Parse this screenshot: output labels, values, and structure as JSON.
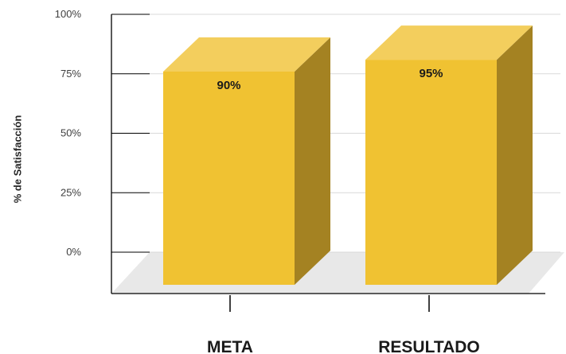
{
  "chart_data": {
    "type": "bar",
    "style": "3d-column",
    "categories": [
      "META",
      "RESULTADO"
    ],
    "values": [
      90,
      95
    ],
    "data_labels": [
      "90%",
      "95%"
    ],
    "ylabel": "% de Satisfacción",
    "ylim": [
      0,
      100
    ],
    "yticks": [
      0,
      25,
      50,
      75,
      100
    ],
    "ytick_labels": [
      "0%",
      "25%",
      "50%",
      "75%",
      "100%"
    ],
    "grid": true,
    "legend": "none",
    "colors": {
      "bar_front": "#F0C232",
      "bar_top": "#F3CE5D",
      "bar_side": "#A48222",
      "floor": "#E8E8E8",
      "grid": "#D9D9D9",
      "axis": "#000000"
    }
  }
}
